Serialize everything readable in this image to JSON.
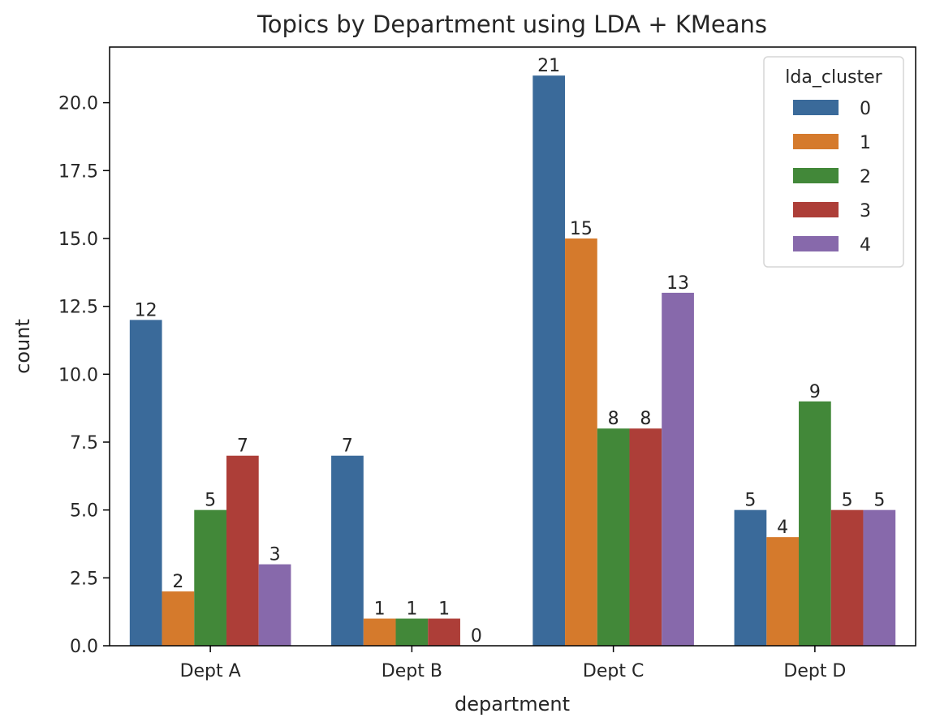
{
  "chart_data": {
    "type": "bar",
    "title": "Topics by Department using LDA + KMeans",
    "xlabel": "department",
    "ylabel": "count",
    "categories": [
      "Dept A",
      "Dept B",
      "Dept C",
      "Dept D"
    ],
    "ylim": [
      0,
      22.05
    ],
    "yticks": [
      "0.0",
      "2.5",
      "5.0",
      "7.5",
      "10.0",
      "12.5",
      "15.0",
      "17.5",
      "20.0"
    ],
    "legend": {
      "title": "lda_cluster",
      "placement": "upper right"
    },
    "series": [
      {
        "name": "0",
        "color": "#3a6a9a",
        "values": [
          12,
          7,
          21,
          5
        ]
      },
      {
        "name": "1",
        "color": "#d57a2c",
        "values": [
          2,
          1,
          15,
          4
        ]
      },
      {
        "name": "2",
        "color": "#428839",
        "values": [
          5,
          1,
          8,
          9
        ]
      },
      {
        "name": "3",
        "color": "#ad3e38",
        "values": [
          7,
          1,
          8,
          5
        ]
      },
      {
        "name": "4",
        "color": "#8769ab",
        "values": [
          3,
          0,
          13,
          5
        ]
      }
    ],
    "grid": false
  }
}
